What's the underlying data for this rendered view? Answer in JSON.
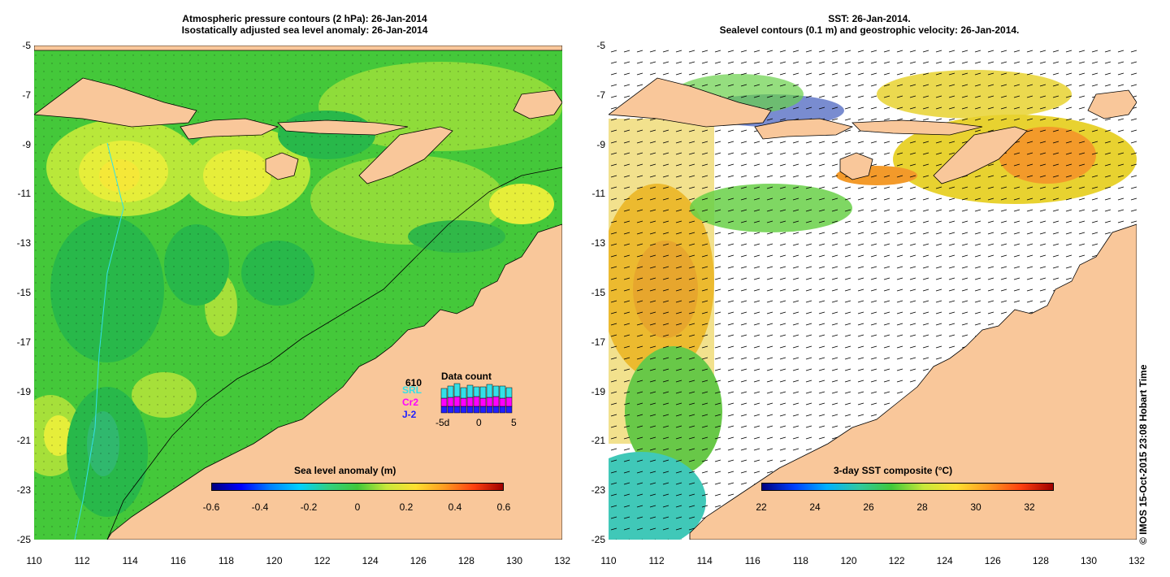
{
  "left_panel": {
    "title_line1": "Atmospheric pressure contours (2 hPa): 26-Jan-2014",
    "title_line2": "Isostatically adjusted sea level anomaly: 26-Jan-2014",
    "colorbar": {
      "label": "Sea level anomaly (m)",
      "ticks": [
        "-0.6",
        "-0.4",
        "-0.2",
        "0",
        "0.2",
        "0.4",
        "0.6"
      ]
    },
    "data_count": {
      "title": "Data count",
      "max": "610",
      "satellites": [
        "SRL",
        "Cr2",
        "J-2"
      ],
      "satellite_colors": [
        "#33e0e8",
        "#ff00ff",
        "#2020ff"
      ],
      "axis_ticks": [
        "-5d",
        "0",
        "5"
      ]
    }
  },
  "right_panel": {
    "title_line1": "SST: 26-Jan-2014.",
    "title_line2": "Sealevel contours (0.1 m) and geostrophic velocity: 26-Jan-2014.",
    "colorbar": {
      "label": "3-day SST composite (°C)",
      "ticks": [
        "22",
        "24",
        "26",
        "28",
        "30",
        "32"
      ]
    }
  },
  "axes": {
    "lat_ticks": [
      "-5",
      "-7",
      "-9",
      "-11",
      "-13",
      "-15",
      "-17",
      "-19",
      "-21",
      "-23",
      "-25"
    ],
    "lon_ticks": [
      "110",
      "112",
      "114",
      "116",
      "118",
      "120",
      "122",
      "124",
      "126",
      "128",
      "130",
      "132"
    ]
  },
  "credit": "© IMOS 15-Oct-2015 23:08 Hobart Time",
  "colors": {
    "land": "#f9c79a",
    "anomaly_base": "#40c83a",
    "sst_base": "#ffffff"
  }
}
